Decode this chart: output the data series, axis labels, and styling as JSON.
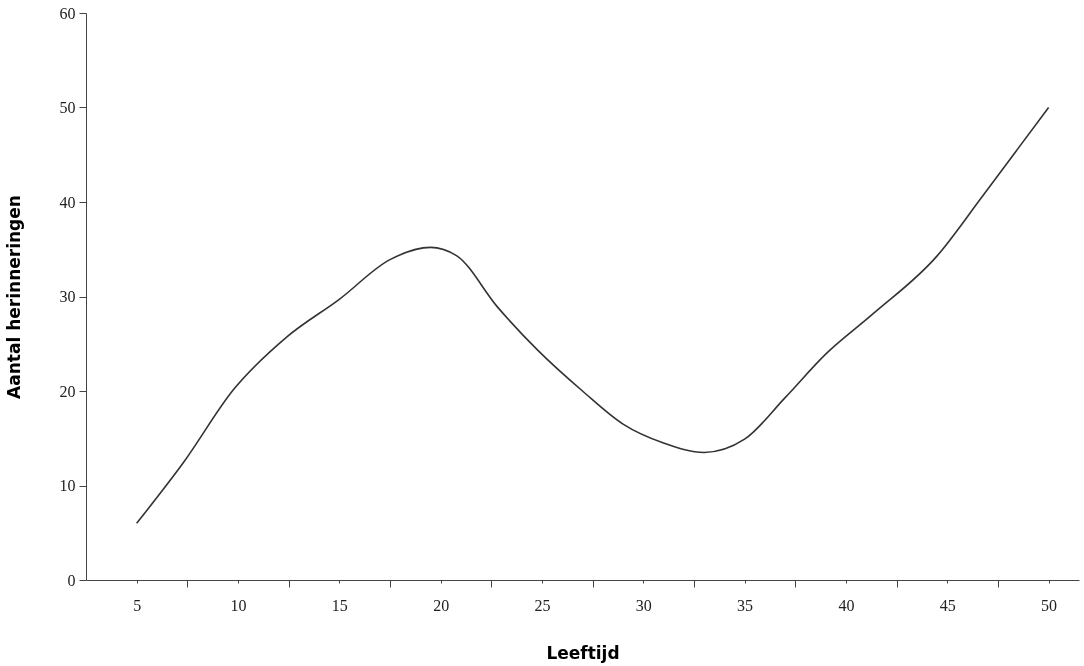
{
  "chart_data": {
    "type": "line",
    "xlabel": "Leeftijd",
    "ylabel": "Aantal herinneringen",
    "x": [
      5,
      7.3,
      9.8,
      12.4,
      15,
      17.5,
      19.5,
      20.8,
      22.8,
      24.8,
      27,
      29,
      31,
      33,
      35,
      37,
      39,
      41.3,
      44.5,
      46.7,
      50
    ],
    "series": [
      {
        "color": "#333333",
        "values": [
          6,
          12.4,
          20.2,
          25.7,
          29.7,
          33.9,
          35.2,
          34.3,
          28.9,
          24.3,
          20,
          16.5,
          14.5,
          13.5,
          14.9,
          19.3,
          23.9,
          28.1,
          34.3,
          40.5,
          50
        ]
      }
    ],
    "xlim": [
      2.5,
      51.5
    ],
    "xticks": [
      5,
      {
        "value": 7.5,
        "label": null
      },
      10,
      {
        "value": 12.5,
        "label": null
      },
      15,
      {
        "value": 17.5,
        "label": null
      },
      20,
      {
        "value": 22.5,
        "label": null
      },
      25,
      {
        "value": 27.5,
        "label": null
      },
      30,
      {
        "value": 32.5,
        "label": null
      },
      35,
      {
        "value": 37.5,
        "label": null
      },
      40,
      {
        "value": 42.5,
        "label": null
      },
      45,
      {
        "value": 47.5,
        "label": null
      },
      50
    ],
    "ylim": [
      0,
      60
    ],
    "yticks": [
      0,
      10,
      20,
      30,
      40,
      50,
      60
    ],
    "grid": false,
    "marker": "none",
    "line_style": "solid"
  }
}
